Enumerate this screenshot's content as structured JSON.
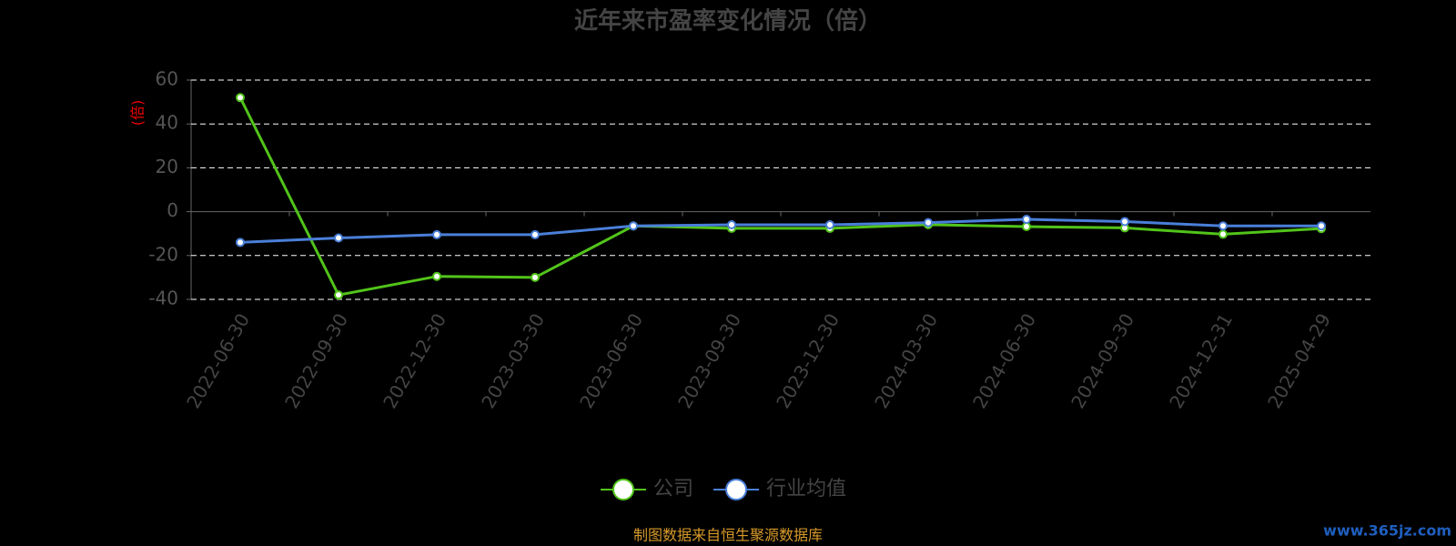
{
  "chart_data": {
    "type": "line",
    "title": "近年来市盈率变化情况（倍）",
    "y_label": "(倍)",
    "categories": [
      "2022-06-30",
      "2022-09-30",
      "2022-12-30",
      "2023-03-30",
      "2023-06-30",
      "2023-09-30",
      "2023-12-30",
      "2024-03-30",
      "2024-06-30",
      "2024-09-30",
      "2024-12-31",
      "2025-04-29"
    ],
    "series": [
      {
        "name": "公司",
        "color": "#52c41a",
        "values": [
          52,
          -38,
          -29.5,
          -30,
          -6.5,
          -7.6,
          -7.6,
          -5.9,
          -6.8,
          -7.4,
          -10.3,
          -7.7
        ]
      },
      {
        "name": "行业均值",
        "color": "#4a7fd9",
        "values": [
          -14,
          -12,
          -10.5,
          -10.5,
          -6.5,
          -6,
          -6,
          -5,
          -3.5,
          -4.5,
          -6.5,
          -6.5
        ]
      }
    ],
    "ylim": [
      -40,
      60
    ],
    "yticks": [
      -40,
      -20,
      0,
      20,
      40,
      60
    ],
    "grid": true,
    "source": "制图数据来自恒生聚源数据库",
    "watermark": "www.365jz.com"
  }
}
